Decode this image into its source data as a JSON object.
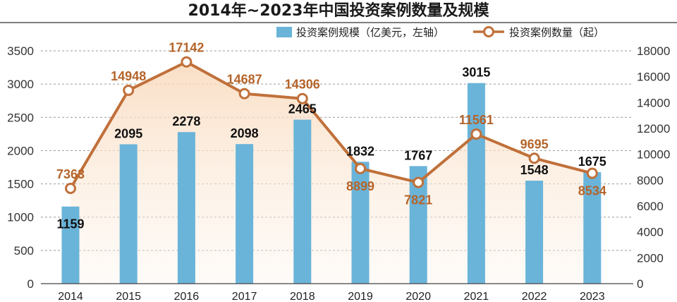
{
  "chart_data": {
    "type": "bar",
    "title": "2014年~2023年中国投资案例数量及规模",
    "categories": [
      "2014",
      "2015",
      "2016",
      "2017",
      "2018",
      "2019",
      "2020",
      "2021",
      "2022",
      "2023"
    ],
    "series": [
      {
        "name": "投资案例规模（亿美元，左轴）",
        "type": "bar",
        "axis": "left",
        "color": "#6ab4d9",
        "values": [
          1159,
          2095,
          2278,
          2098,
          2465,
          1832,
          1767,
          3015,
          1548,
          1675
        ]
      },
      {
        "name": "投资案例数量（起）",
        "type": "line",
        "axis": "right",
        "color": "#c0703a",
        "values": [
          7363,
          14948,
          17142,
          14687,
          14306,
          8899,
          7821,
          11561,
          9695,
          8534
        ]
      }
    ],
    "ylim_left": [
      0,
      3500
    ],
    "yticks_left": [
      0,
      500,
      1000,
      1500,
      2000,
      2500,
      3000,
      3500
    ],
    "ylim_right": [
      0,
      18000
    ],
    "yticks_right": [
      0,
      2000,
      4000,
      6000,
      8000,
      10000,
      12000,
      14000,
      16000,
      18000
    ],
    "grid": true,
    "legend_position": "top-right",
    "area_fill_under_line": "#fbe3cc"
  }
}
